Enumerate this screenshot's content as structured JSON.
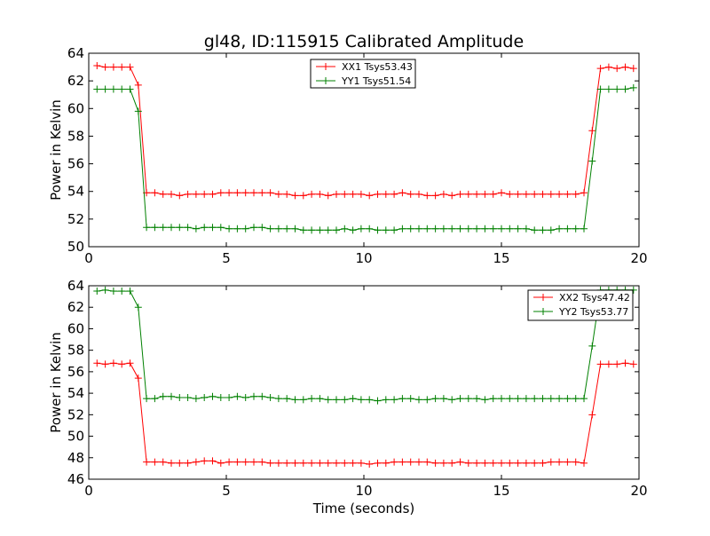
{
  "figure": {
    "title": "gl48, ID:115915 Calibrated Amplitude",
    "xlabel": "Time (seconds)"
  },
  "colors": {
    "red": "#ff0000",
    "green": "#008000"
  },
  "chart_data": [
    {
      "type": "line",
      "title": "gl48, ID:115915 Calibrated Amplitude",
      "xlabel": "",
      "ylabel": "Power in Kelvin",
      "xlim": [
        0,
        20
      ],
      "ylim": [
        50,
        64
      ],
      "xticks": [
        0,
        5,
        10,
        15,
        20
      ],
      "yticks": [
        50,
        52,
        54,
        56,
        58,
        60,
        62,
        64
      ],
      "legend_position": "top-center",
      "series": [
        {
          "name": "XX1 Tsys53.43",
          "color": "#ff0000",
          "x": [
            0.3,
            0.6,
            0.9,
            1.2,
            1.5,
            1.8,
            2.1,
            2.4,
            2.7,
            3.0,
            3.3,
            3.6,
            3.9,
            4.2,
            4.5,
            4.8,
            5.1,
            5.4,
            5.7,
            6.0,
            6.3,
            6.6,
            6.9,
            7.2,
            7.5,
            7.8,
            8.1,
            8.4,
            8.7,
            9.0,
            9.3,
            9.6,
            9.9,
            10.2,
            10.5,
            10.8,
            11.1,
            11.4,
            11.7,
            12.0,
            12.3,
            12.6,
            12.9,
            13.2,
            13.5,
            13.8,
            14.1,
            14.4,
            14.7,
            15.0,
            15.3,
            15.6,
            15.9,
            16.2,
            16.5,
            16.8,
            17.1,
            17.4,
            17.7,
            18.0,
            18.3,
            18.6,
            18.9,
            19.2,
            19.5,
            19.8
          ],
          "y": [
            63.1,
            63.0,
            63.0,
            63.0,
            63.0,
            61.7,
            53.9,
            53.9,
            53.8,
            53.8,
            53.7,
            53.8,
            53.8,
            53.8,
            53.8,
            53.9,
            53.9,
            53.9,
            53.9,
            53.9,
            53.9,
            53.9,
            53.8,
            53.8,
            53.7,
            53.7,
            53.8,
            53.8,
            53.7,
            53.8,
            53.8,
            53.8,
            53.8,
            53.7,
            53.8,
            53.8,
            53.8,
            53.9,
            53.8,
            53.8,
            53.7,
            53.7,
            53.8,
            53.7,
            53.8,
            53.8,
            53.8,
            53.8,
            53.8,
            53.9,
            53.8,
            53.8,
            53.8,
            53.8,
            53.8,
            53.8,
            53.8,
            53.8,
            53.8,
            53.9,
            58.4,
            62.9,
            63.0,
            62.9,
            63.0,
            62.9
          ]
        },
        {
          "name": "YY1 Tsys51.54",
          "color": "#008000",
          "x": [
            0.3,
            0.6,
            0.9,
            1.2,
            1.5,
            1.8,
            2.1,
            2.4,
            2.7,
            3.0,
            3.3,
            3.6,
            3.9,
            4.2,
            4.5,
            4.8,
            5.1,
            5.4,
            5.7,
            6.0,
            6.3,
            6.6,
            6.9,
            7.2,
            7.5,
            7.8,
            8.1,
            8.4,
            8.7,
            9.0,
            9.3,
            9.6,
            9.9,
            10.2,
            10.5,
            10.8,
            11.1,
            11.4,
            11.7,
            12.0,
            12.3,
            12.6,
            12.9,
            13.2,
            13.5,
            13.8,
            14.1,
            14.4,
            14.7,
            15.0,
            15.3,
            15.6,
            15.9,
            16.2,
            16.5,
            16.8,
            17.1,
            17.4,
            17.7,
            18.0,
            18.3,
            18.6,
            18.9,
            19.2,
            19.5,
            19.8
          ],
          "y": [
            61.4,
            61.4,
            61.4,
            61.4,
            61.4,
            59.8,
            51.4,
            51.4,
            51.4,
            51.4,
            51.4,
            51.4,
            51.3,
            51.4,
            51.4,
            51.4,
            51.3,
            51.3,
            51.3,
            51.4,
            51.4,
            51.3,
            51.3,
            51.3,
            51.3,
            51.2,
            51.2,
            51.2,
            51.2,
            51.2,
            51.3,
            51.2,
            51.3,
            51.3,
            51.2,
            51.2,
            51.2,
            51.3,
            51.3,
            51.3,
            51.3,
            51.3,
            51.3,
            51.3,
            51.3,
            51.3,
            51.3,
            51.3,
            51.3,
            51.3,
            51.3,
            51.3,
            51.3,
            51.2,
            51.2,
            51.2,
            51.3,
            51.3,
            51.3,
            51.3,
            56.2,
            61.4,
            61.4,
            61.4,
            61.4,
            61.5
          ]
        }
      ]
    },
    {
      "type": "line",
      "title": "",
      "xlabel": "Time (seconds)",
      "ylabel": "Power in Kelvin",
      "xlim": [
        0,
        20
      ],
      "ylim": [
        46,
        64
      ],
      "xticks": [
        0,
        5,
        10,
        15,
        20
      ],
      "yticks": [
        46,
        48,
        50,
        52,
        54,
        56,
        58,
        60,
        62,
        64
      ],
      "legend_position": "top-right",
      "series": [
        {
          "name": "XX2 Tsys47.42",
          "color": "#ff0000",
          "x": [
            0.3,
            0.6,
            0.9,
            1.2,
            1.5,
            1.8,
            2.1,
            2.4,
            2.7,
            3.0,
            3.3,
            3.6,
            3.9,
            4.2,
            4.5,
            4.8,
            5.1,
            5.4,
            5.7,
            6.0,
            6.3,
            6.6,
            6.9,
            7.2,
            7.5,
            7.8,
            8.1,
            8.4,
            8.7,
            9.0,
            9.3,
            9.6,
            9.9,
            10.2,
            10.5,
            10.8,
            11.1,
            11.4,
            11.7,
            12.0,
            12.3,
            12.6,
            12.9,
            13.2,
            13.5,
            13.8,
            14.1,
            14.4,
            14.7,
            15.0,
            15.3,
            15.6,
            15.9,
            16.2,
            16.5,
            16.8,
            17.1,
            17.4,
            17.7,
            18.0,
            18.3,
            18.6,
            18.9,
            19.2,
            19.5,
            19.8
          ],
          "y": [
            56.8,
            56.7,
            56.8,
            56.7,
            56.8,
            55.4,
            47.6,
            47.6,
            47.6,
            47.5,
            47.5,
            47.5,
            47.6,
            47.7,
            47.7,
            47.5,
            47.6,
            47.6,
            47.6,
            47.6,
            47.6,
            47.5,
            47.5,
            47.5,
            47.5,
            47.5,
            47.5,
            47.5,
            47.5,
            47.5,
            47.5,
            47.5,
            47.5,
            47.4,
            47.5,
            47.5,
            47.6,
            47.6,
            47.6,
            47.6,
            47.6,
            47.5,
            47.5,
            47.5,
            47.6,
            47.5,
            47.5,
            47.5,
            47.5,
            47.5,
            47.5,
            47.5,
            47.5,
            47.5,
            47.5,
            47.6,
            47.6,
            47.6,
            47.6,
            47.5,
            52.0,
            56.7,
            56.7,
            56.7,
            56.8,
            56.7
          ]
        },
        {
          "name": "YY2 Tsys53.77",
          "color": "#008000",
          "x": [
            0.3,
            0.6,
            0.9,
            1.2,
            1.5,
            1.8,
            2.1,
            2.4,
            2.7,
            3.0,
            3.3,
            3.6,
            3.9,
            4.2,
            4.5,
            4.8,
            5.1,
            5.4,
            5.7,
            6.0,
            6.3,
            6.6,
            6.9,
            7.2,
            7.5,
            7.8,
            8.1,
            8.4,
            8.7,
            9.0,
            9.3,
            9.6,
            9.9,
            10.2,
            10.5,
            10.8,
            11.1,
            11.4,
            11.7,
            12.0,
            12.3,
            12.6,
            12.9,
            13.2,
            13.5,
            13.8,
            14.1,
            14.4,
            14.7,
            15.0,
            15.3,
            15.6,
            15.9,
            16.2,
            16.5,
            16.8,
            17.1,
            17.4,
            17.7,
            18.0,
            18.3,
            18.6,
            18.9,
            19.2,
            19.5,
            19.8
          ],
          "y": [
            63.5,
            63.6,
            63.5,
            63.5,
            63.5,
            62.0,
            53.5,
            53.5,
            53.7,
            53.7,
            53.6,
            53.6,
            53.5,
            53.6,
            53.7,
            53.6,
            53.6,
            53.7,
            53.6,
            53.7,
            53.7,
            53.6,
            53.5,
            53.5,
            53.4,
            53.4,
            53.5,
            53.5,
            53.4,
            53.4,
            53.4,
            53.5,
            53.4,
            53.4,
            53.3,
            53.4,
            53.4,
            53.5,
            53.5,
            53.4,
            53.4,
            53.5,
            53.5,
            53.4,
            53.5,
            53.5,
            53.5,
            53.4,
            53.5,
            53.5,
            53.5,
            53.5,
            53.5,
            53.5,
            53.5,
            53.5,
            53.5,
            53.5,
            53.5,
            53.5,
            58.4,
            63.6,
            63.6,
            63.6,
            63.6,
            63.6
          ]
        }
      ]
    }
  ]
}
